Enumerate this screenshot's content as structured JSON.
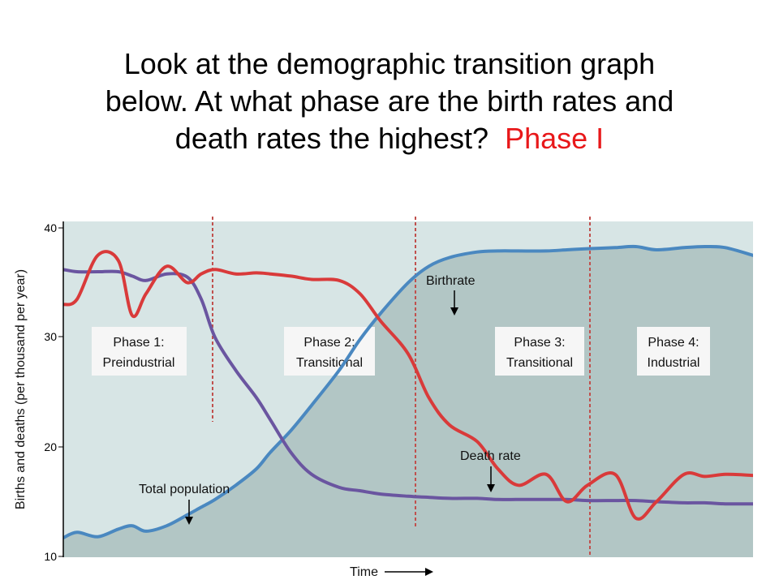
{
  "question": {
    "line1": "Look at the demographic transition graph",
    "line2": "below.  At what phase are the birth rates and",
    "line3": "death rates the highest?",
    "answer": "Phase I",
    "answer_color": "#e8181a"
  },
  "chart_data": {
    "type": "line",
    "title": "",
    "xlabel": "Time",
    "ylabel": "Births and deaths (per thousand per year)",
    "ylim": [
      10,
      40
    ],
    "yticks": [
      "40",
      "30",
      "20",
      "10"
    ],
    "grid": false,
    "phases": [
      {
        "line1": "Phase 1:",
        "line2": "Preindustrial"
      },
      {
        "line1": "Phase 2:",
        "line2": "Transitional"
      },
      {
        "line1": "Phase 3:",
        "line2": "Transitional"
      },
      {
        "line1": "Phase 4:",
        "line2": "Industrial"
      }
    ],
    "annotations": {
      "birthrate": "Birthrate",
      "death_rate": "Death rate",
      "total_population": "Total population"
    },
    "x": [
      0,
      2,
      5,
      8,
      10,
      12,
      15,
      18,
      20,
      22,
      25,
      28,
      30,
      33,
      36,
      40,
      43,
      46,
      50,
      53,
      56,
      60,
      63,
      66,
      70,
      73,
      76,
      80,
      83,
      86,
      90,
      93,
      96,
      100
    ],
    "series": [
      {
        "id": "birthrate",
        "color": "#d93a3a",
        "values": [
          33.0,
          33.5,
          37.5,
          37.0,
          32.0,
          34.0,
          36.5,
          35.0,
          35.8,
          36.2,
          35.8,
          35.9,
          35.8,
          35.6,
          35.3,
          35.2,
          34.0,
          31.5,
          28.5,
          24.5,
          22.0,
          20.5,
          18.0,
          16.5,
          17.5,
          15.0,
          16.5,
          17.5,
          13.5,
          15.0,
          17.5,
          17.3,
          17.5,
          17.4
        ]
      },
      {
        "id": "death_rate",
        "color": "#6a55a0",
        "values": [
          36.2,
          36.0,
          36.0,
          36.0,
          35.6,
          35.2,
          35.8,
          35.5,
          33.5,
          30.0,
          27.0,
          24.5,
          22.5,
          19.5,
          17.5,
          16.3,
          16.0,
          15.7,
          15.5,
          15.4,
          15.3,
          15.3,
          15.2,
          15.2,
          15.2,
          15.2,
          15.1,
          15.1,
          15.1,
          15.0,
          14.9,
          14.9,
          14.8,
          14.8
        ]
      },
      {
        "id": "total_population",
        "color": "#4a88c0",
        "values": [
          11.7,
          12.2,
          11.8,
          12.5,
          12.8,
          12.3,
          12.8,
          13.8,
          14.5,
          15.2,
          16.5,
          18.0,
          19.5,
          21.5,
          23.8,
          27.0,
          29.8,
          32.2,
          35.0,
          36.5,
          37.3,
          37.8,
          37.9,
          37.9,
          37.9,
          38.0,
          38.1,
          38.2,
          38.3,
          38.0,
          38.2,
          38.3,
          38.2,
          37.5
        ]
      }
    ]
  }
}
